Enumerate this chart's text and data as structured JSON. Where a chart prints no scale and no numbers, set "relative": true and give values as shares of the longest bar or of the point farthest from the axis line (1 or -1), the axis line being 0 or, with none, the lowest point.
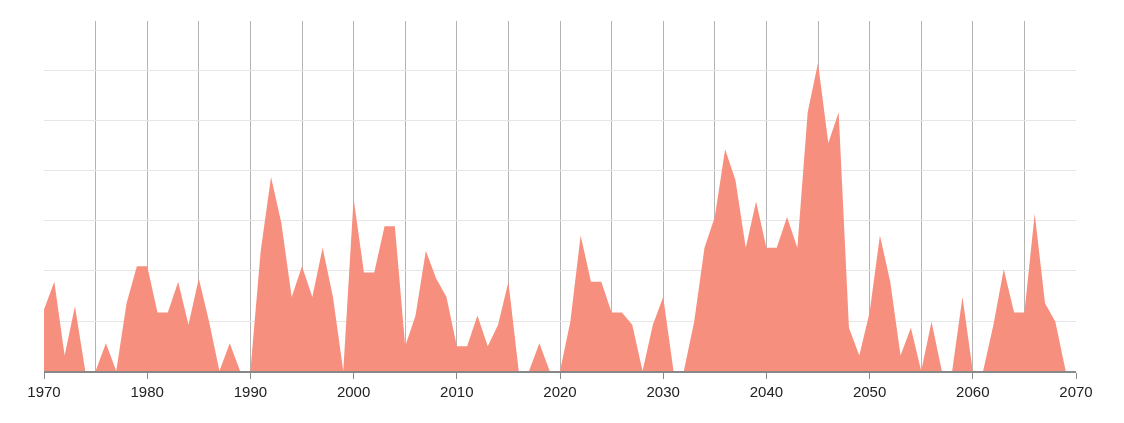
{
  "chart_data": {
    "type": "area",
    "relative": true,
    "color": "#f78f7e",
    "grid": true,
    "x": [
      1970,
      1971,
      1972,
      1973,
      1974,
      1975,
      1976,
      1977,
      1978,
      1979,
      1980,
      1981,
      1982,
      1983,
      1984,
      1985,
      1986,
      1987,
      1988,
      1989,
      1990,
      1991,
      1992,
      1993,
      1994,
      1995,
      1996,
      1997,
      1998,
      1999,
      2000,
      2001,
      2002,
      2003,
      2004,
      2005,
      2006,
      2007,
      2008,
      2009,
      2010,
      2011,
      2012,
      2013,
      2014,
      2015,
      2016,
      2017,
      2018,
      2019,
      2020,
      2021,
      2022,
      2023,
      2024,
      2025,
      2026,
      2027,
      2028,
      2029,
      2030,
      2031,
      2032,
      2033,
      2034,
      2035,
      2036,
      2037,
      2038,
      2039,
      2040,
      2041,
      2042,
      2043,
      2044,
      2045,
      2046,
      2047,
      2048,
      2049,
      2050,
      2051,
      2052,
      2053,
      2054,
      2055,
      2056,
      2057,
      2058,
      2059,
      2060,
      2061,
      2062,
      2063,
      2064,
      2065,
      2066,
      2067,
      2068,
      2069
    ],
    "values": [
      0.2,
      0.29,
      0.05,
      0.21,
      0,
      0,
      0.09,
      0,
      0.22,
      0.34,
      0.34,
      0.19,
      0.19,
      0.29,
      0.15,
      0.3,
      0.16,
      0,
      0.09,
      0,
      0,
      0.39,
      0.63,
      0.48,
      0.24,
      0.34,
      0.24,
      0.4,
      0.24,
      0,
      0.56,
      0.32,
      0.32,
      0.47,
      0.47,
      0.08,
      0.18,
      0.39,
      0.3,
      0.24,
      0.08,
      0.08,
      0.18,
      0.08,
      0.15,
      0.29,
      0,
      0,
      0.09,
      0,
      0,
      0.16,
      0.44,
      0.29,
      0.29,
      0.19,
      0.19,
      0.15,
      0,
      0.15,
      0.24,
      0,
      0,
      0.16,
      0.4,
      0.5,
      0.72,
      0.62,
      0.4,
      0.55,
      0.4,
      0.4,
      0.5,
      0.4,
      0.84,
      1,
      0.74,
      0.84,
      0.14,
      0.05,
      0.19,
      0.44,
      0.29,
      0.05,
      0.14,
      0,
      0.16,
      0,
      0,
      0.24,
      0,
      0,
      0.15,
      0.33,
      0.19,
      0.19,
      0.51,
      0.22,
      0.16,
      0
    ],
    "xlim": [
      1970,
      2070
    ],
    "xticks": [
      1970,
      1980,
      1990,
      2000,
      2010,
      2020,
      2030,
      2040,
      2050,
      2060,
      2070
    ]
  }
}
